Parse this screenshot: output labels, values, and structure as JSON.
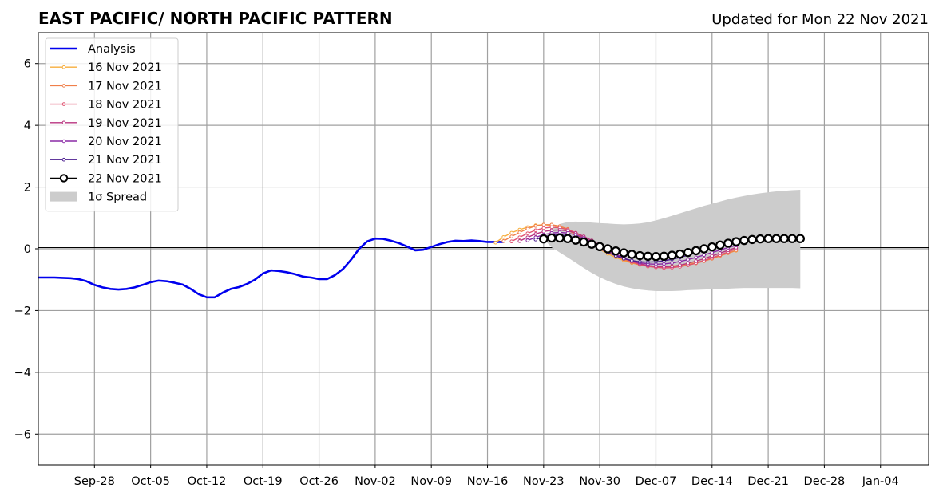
{
  "chart_data": {
    "type": "line",
    "title": "EAST PACIFIC/ NORTH PACIFIC PATTERN",
    "subtitle": "Updated for Mon 22 Nov 2021",
    "xlabel": "",
    "ylabel": "",
    "x_range": [
      "2021-09-21",
      "2022-01-10"
    ],
    "ylim": [
      -7,
      7
    ],
    "y_ticks": [
      -6,
      -4,
      -2,
      0,
      2,
      4,
      6
    ],
    "y_tick_labels": [
      "−6",
      "−4",
      "−2",
      "0",
      "2",
      "4",
      "6"
    ],
    "x_ticks": [
      "2021-09-28",
      "2021-10-05",
      "2021-10-12",
      "2021-10-19",
      "2021-10-26",
      "2021-11-02",
      "2021-11-09",
      "2021-11-16",
      "2021-11-23",
      "2021-11-30",
      "2021-12-07",
      "2021-12-14",
      "2021-12-21",
      "2021-12-28",
      "2022-01-04"
    ],
    "x_tick_labels": [
      "Sep-28",
      "Oct-05",
      "Oct-12",
      "Oct-19",
      "Oct-26",
      "Nov-02",
      "Nov-09",
      "Nov-16",
      "Nov-23",
      "Nov-30",
      "Dec-07",
      "Dec-14",
      "Dec-21",
      "Dec-28",
      "Jan-04"
    ],
    "grid": true,
    "legend_position": "top-left",
    "series": [
      {
        "name": "Analysis",
        "color": "#0000ee",
        "start": "2021-09-21",
        "values": [
          -0.93,
          -0.93,
          -0.93,
          -0.94,
          -0.95,
          -0.98,
          -1.05,
          -1.17,
          -1.25,
          -1.3,
          -1.32,
          -1.3,
          -1.25,
          -1.17,
          -1.08,
          -1.03,
          -1.05,
          -1.1,
          -1.16,
          -1.3,
          -1.47,
          -1.57,
          -1.57,
          -1.42,
          -1.3,
          -1.24,
          -1.14,
          -1.0,
          -0.8,
          -0.7,
          -0.72,
          -0.76,
          -0.82,
          -0.9,
          -0.93,
          -0.98,
          -0.98,
          -0.85,
          -0.65,
          -0.35,
          0.0,
          0.24,
          0.33,
          0.32,
          0.26,
          0.18,
          0.07,
          -0.05,
          -0.03,
          0.06,
          0.15,
          0.22,
          0.26,
          0.25,
          0.27,
          0.25,
          0.22,
          0.22,
          0.22
        ]
      },
      {
        "name": "16 Nov 2021",
        "color": "#f7ae3d",
        "start": "2021-11-17",
        "values": [
          0.2,
          0.38,
          0.52,
          0.62,
          0.7,
          0.76,
          0.78,
          0.76,
          0.7,
          0.6,
          0.46,
          0.3,
          0.14,
          -0.02,
          -0.16,
          -0.28,
          -0.38,
          -0.46,
          -0.52,
          -0.55,
          -0.57,
          -0.57,
          -0.56,
          -0.54,
          -0.5,
          -0.45,
          -0.38,
          -0.3,
          -0.22,
          -0.14,
          -0.06
        ]
      },
      {
        "name": "17 Nov 2021",
        "color": "#f07f4a",
        "start": "2021-11-18",
        "values": [
          0.25,
          0.4,
          0.53,
          0.65,
          0.74,
          0.78,
          0.78,
          0.73,
          0.64,
          0.51,
          0.36,
          0.2,
          0.04,
          -0.1,
          -0.23,
          -0.35,
          -0.45,
          -0.52,
          -0.57,
          -0.6,
          -0.61,
          -0.6,
          -0.57,
          -0.53,
          -0.47,
          -0.4,
          -0.32,
          -0.23,
          -0.14,
          -0.05
        ]
      },
      {
        "name": "18 Nov 2021",
        "color": "#e05270",
        "start": "2021-11-19",
        "values": [
          0.24,
          0.37,
          0.5,
          0.6,
          0.67,
          0.7,
          0.68,
          0.62,
          0.52,
          0.4,
          0.26,
          0.11,
          -0.04,
          -0.18,
          -0.31,
          -0.42,
          -0.51,
          -0.57,
          -0.6,
          -0.62,
          -0.61,
          -0.58,
          -0.53,
          -0.46,
          -0.38,
          -0.29,
          -0.2,
          -0.1,
          0.0
        ]
      },
      {
        "name": "19 Nov 2021",
        "color": "#b8337f",
        "start": "2021-11-20",
        "values": [
          0.25,
          0.37,
          0.48,
          0.56,
          0.6,
          0.61,
          0.58,
          0.51,
          0.4,
          0.27,
          0.12,
          -0.03,
          -0.17,
          -0.3,
          -0.4,
          -0.48,
          -0.54,
          -0.57,
          -0.58,
          -0.57,
          -0.53,
          -0.47,
          -0.4,
          -0.32,
          -0.23,
          -0.14,
          -0.05,
          0.04
        ]
      },
      {
        "name": "20 Nov 2021",
        "color": "#8a2aa6",
        "start": "2021-11-21",
        "values": [
          0.27,
          0.37,
          0.46,
          0.51,
          0.53,
          0.51,
          0.45,
          0.35,
          0.22,
          0.08,
          -0.06,
          -0.19,
          -0.3,
          -0.39,
          -0.45,
          -0.49,
          -0.5,
          -0.49,
          -0.46,
          -0.41,
          -0.35,
          -0.28,
          -0.2,
          -0.12,
          -0.04,
          0.04,
          0.11
        ]
      },
      {
        "name": "21 Nov 2021",
        "color": "#4b1d8f",
        "start": "2021-11-22",
        "values": [
          0.3,
          0.39,
          0.44,
          0.45,
          0.42,
          0.35,
          0.25,
          0.13,
          0.0,
          -0.12,
          -0.23,
          -0.32,
          -0.38,
          -0.42,
          -0.43,
          -0.42,
          -0.39,
          -0.34,
          -0.28,
          -0.21,
          -0.13,
          -0.05,
          0.03,
          0.1,
          0.16,
          0.21
        ]
      },
      {
        "name": "22 Nov 2021",
        "color": "#000000",
        "start": "2021-11-23",
        "values": [
          0.32,
          0.35,
          0.35,
          0.33,
          0.28,
          0.22,
          0.15,
          0.07,
          0.0,
          -0.07,
          -0.13,
          -0.18,
          -0.22,
          -0.24,
          -0.25,
          -0.24,
          -0.21,
          -0.17,
          -0.12,
          -0.06,
          0.0,
          0.06,
          0.12,
          0.18,
          0.23,
          0.27,
          0.3,
          0.32,
          0.33,
          0.33,
          0.33,
          0.33,
          0.33
        ]
      }
    ],
    "spread": {
      "name": "1σ Spread",
      "color": "#cccccc",
      "start": "2021-11-23",
      "upper": [
        0.32,
        0.65,
        0.8,
        0.87,
        0.88,
        0.87,
        0.85,
        0.83,
        0.82,
        0.8,
        0.79,
        0.8,
        0.82,
        0.86,
        0.92,
        0.99,
        1.07,
        1.15,
        1.23,
        1.31,
        1.39,
        1.46,
        1.53,
        1.6,
        1.66,
        1.71,
        1.76,
        1.8,
        1.83,
        1.86,
        1.88,
        1.9,
        1.91
      ],
      "lower": [
        0.32,
        0.05,
        -0.12,
        -0.28,
        -0.45,
        -0.62,
        -0.78,
        -0.92,
        -1.04,
        -1.14,
        -1.22,
        -1.28,
        -1.32,
        -1.35,
        -1.37,
        -1.37,
        -1.37,
        -1.36,
        -1.34,
        -1.33,
        -1.32,
        -1.31,
        -1.3,
        -1.29,
        -1.28,
        -1.27,
        -1.27,
        -1.27,
        -1.27,
        -1.27,
        -1.27,
        -1.27,
        -1.28
      ]
    }
  }
}
